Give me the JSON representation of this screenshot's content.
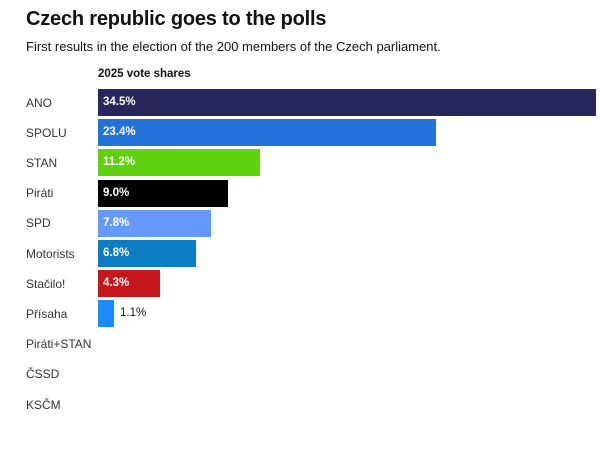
{
  "header": {
    "title": "Czech republic goes to the polls",
    "subtitle": "First results in the election of the 200 members of the Czech parliament."
  },
  "chart_data": {
    "type": "bar",
    "orientation": "horizontal",
    "title": "Czech republic goes to the polls",
    "subtitle": "First results in the election of the 200 members of the Czech parliament.",
    "series_label": "2025 vote shares",
    "categories": [
      "ANO",
      "SPOLU",
      "STAN",
      "Piráti",
      "SPD",
      "Motorists",
      "Stačilo!",
      "Přísaha",
      "Piráti+STAN",
      "ČSSD",
      "KSČM"
    ],
    "values": [
      34.5,
      23.4,
      11.2,
      9.0,
      7.8,
      6.8,
      4.3,
      1.1,
      null,
      null,
      null
    ],
    "value_labels": [
      "34.5%",
      "23.4%",
      "11.2%",
      "9.0%",
      "7.8%",
      "6.8%",
      "4.3%",
      "1.1%",
      "",
      "",
      ""
    ],
    "colors": [
      "#27275e",
      "#2272d9",
      "#5fd10f",
      "#000000",
      "#6699ff",
      "#0a7dc4",
      "#c4161c",
      "#1a8cff",
      "",
      "",
      ""
    ],
    "xlim": [
      0,
      34.5
    ],
    "grid": false,
    "legend": "none"
  }
}
